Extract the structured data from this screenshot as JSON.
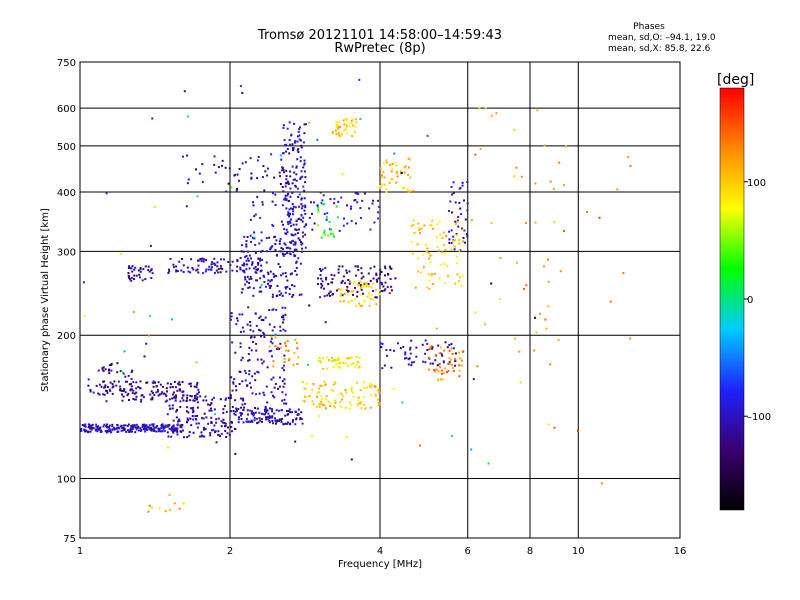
{
  "header": {
    "title": "Tromsø 20121101 14:58:00–14:59:43",
    "subtitle": "RwPretec (8p)",
    "phase_title": "Phases",
    "stat_o": "mean, sd,O: –94.1, 19.0",
    "stat_x": "mean, sd,X: 85.8, 22.6"
  },
  "chart_data": {
    "type": "scatter",
    "title": "Tromsø 20121101 14:58:00–14:59:43",
    "subtitle": "RwPretec (8p)",
    "xlabel": "Frequency [MHz]",
    "ylabel": "Stationary phase Virtual Height [km]",
    "x_scale": "log",
    "y_scale": "log",
    "xlim": [
      1,
      16
    ],
    "ylim": [
      75,
      750
    ],
    "x_ticks": [
      1,
      2,
      4,
      6,
      8,
      10,
      16
    ],
    "x_tick_labels": [
      "1",
      "2",
      "4",
      "6",
      "8",
      "10",
      "16"
    ],
    "y_ticks": [
      75,
      100,
      200,
      300,
      400,
      500,
      600,
      750
    ],
    "y_tick_labels": [
      "75",
      "100",
      "200",
      "300",
      "400",
      "500",
      "600",
      "750"
    ],
    "grid": true,
    "colorbar": {
      "label": "[deg]",
      "range": [
        -180,
        180
      ],
      "ticks": [
        -100,
        0,
        100
      ],
      "tick_labels": [
        "–100",
        "0",
        "100"
      ],
      "colors": [
        "#000000",
        "#3a0070",
        "#1e22ff",
        "#00ccff",
        "#00ff00",
        "#ffff00",
        "#ff8800",
        "#ff0000"
      ]
    },
    "series": [
      {
        "x": [
          1.0,
          1.6
        ],
        "y": [
          125,
          130
        ],
        "phase": -100,
        "n": 220
      },
      {
        "x": [
          1.5,
          2.05
        ],
        "y": [
          122,
          150
        ],
        "phase": -110,
        "n": 160
      },
      {
        "x": [
          1.1,
          1.75
        ],
        "y": [
          145,
          160
        ],
        "phase": -115,
        "n": 130
      },
      {
        "x": [
          1.03,
          1.3
        ],
        "y": [
          150,
          175
        ],
        "phase": -110,
        "n": 40
      },
      {
        "x": [
          2.05,
          2.8
        ],
        "y": [
          130,
          140
        ],
        "phase": -100,
        "n": 120
      },
      {
        "x": [
          2.0,
          2.6
        ],
        "y": [
          140,
          230
        ],
        "phase": -105,
        "n": 150
      },
      {
        "x": [
          1.25,
          1.4
        ],
        "y": [
          260,
          280
        ],
        "phase": -110,
        "n": 35
      },
      {
        "x": [
          1.5,
          2.35
        ],
        "y": [
          270,
          290
        ],
        "phase": -105,
        "n": 90
      },
      {
        "x": [
          2.1,
          2.8
        ],
        "y": [
          240,
          330
        ],
        "phase": -100,
        "n": 170
      },
      {
        "x": [
          2.55,
          2.85
        ],
        "y": [
          300,
          560
        ],
        "phase": -100,
        "n": 160
      },
      {
        "x": [
          1.6,
          2.6
        ],
        "y": [
          400,
          480
        ],
        "phase": -110,
        "n": 50
      },
      {
        "x": [
          2.2,
          4.0
        ],
        "y": [
          330,
          400
        ],
        "phase": -95,
        "n": 80
      },
      {
        "x": [
          3.0,
          4.3
        ],
        "y": [
          240,
          280
        ],
        "phase": -120,
        "n": 110
      },
      {
        "x": [
          4.0,
          5.7
        ],
        "y": [
          170,
          195
        ],
        "phase": -105,
        "n": 60
      },
      {
        "x": [
          5.5,
          6.0
        ],
        "y": [
          300,
          420
        ],
        "phase": -100,
        "n": 40
      },
      {
        "x": [
          2.8,
          4.0
        ],
        "y": [
          140,
          160
        ],
        "phase": 100,
        "n": 100
      },
      {
        "x": [
          3.0,
          3.7
        ],
        "y": [
          170,
          180
        ],
        "phase": 85,
        "n": 45
      },
      {
        "x": [
          3.2,
          3.6
        ],
        "y": [
          520,
          570
        ],
        "phase": 100,
        "n": 40
      },
      {
        "x": [
          3.3,
          4.0
        ],
        "y": [
          230,
          260
        ],
        "phase": 95,
        "n": 50
      },
      {
        "x": [
          4.0,
          4.7
        ],
        "y": [
          400,
          470
        ],
        "phase": 105,
        "n": 45
      },
      {
        "x": [
          4.6,
          5.9
        ],
        "y": [
          250,
          350
        ],
        "phase": 100,
        "n": 80
      },
      {
        "x": [
          5.0,
          5.9
        ],
        "y": [
          160,
          190
        ],
        "phase": 130,
        "n": 45
      },
      {
        "x": [
          3.0,
          3.3
        ],
        "y": [
          320,
          380
        ],
        "phase": 30,
        "n": 20
      },
      {
        "x": [
          2.4,
          2.8
        ],
        "y": [
          170,
          200
        ],
        "phase": 120,
        "n": 25
      },
      {
        "x": [
          6.0,
          9.5
        ],
        "y": [
          150,
          600
        ],
        "phase": 120,
        "n": 40
      },
      {
        "x": [
          8.0,
          13.0
        ],
        "y": [
          90,
          620
        ],
        "phase": 140,
        "n": 14
      },
      {
        "x": [
          1.3,
          1.7
        ],
        "y": [
          85,
          95
        ],
        "phase": 110,
        "n": 10
      },
      {
        "x": [
          1.0,
          9.0
        ],
        "y": [
          100,
          700
        ],
        "phase": 0,
        "n": 70
      }
    ]
  }
}
